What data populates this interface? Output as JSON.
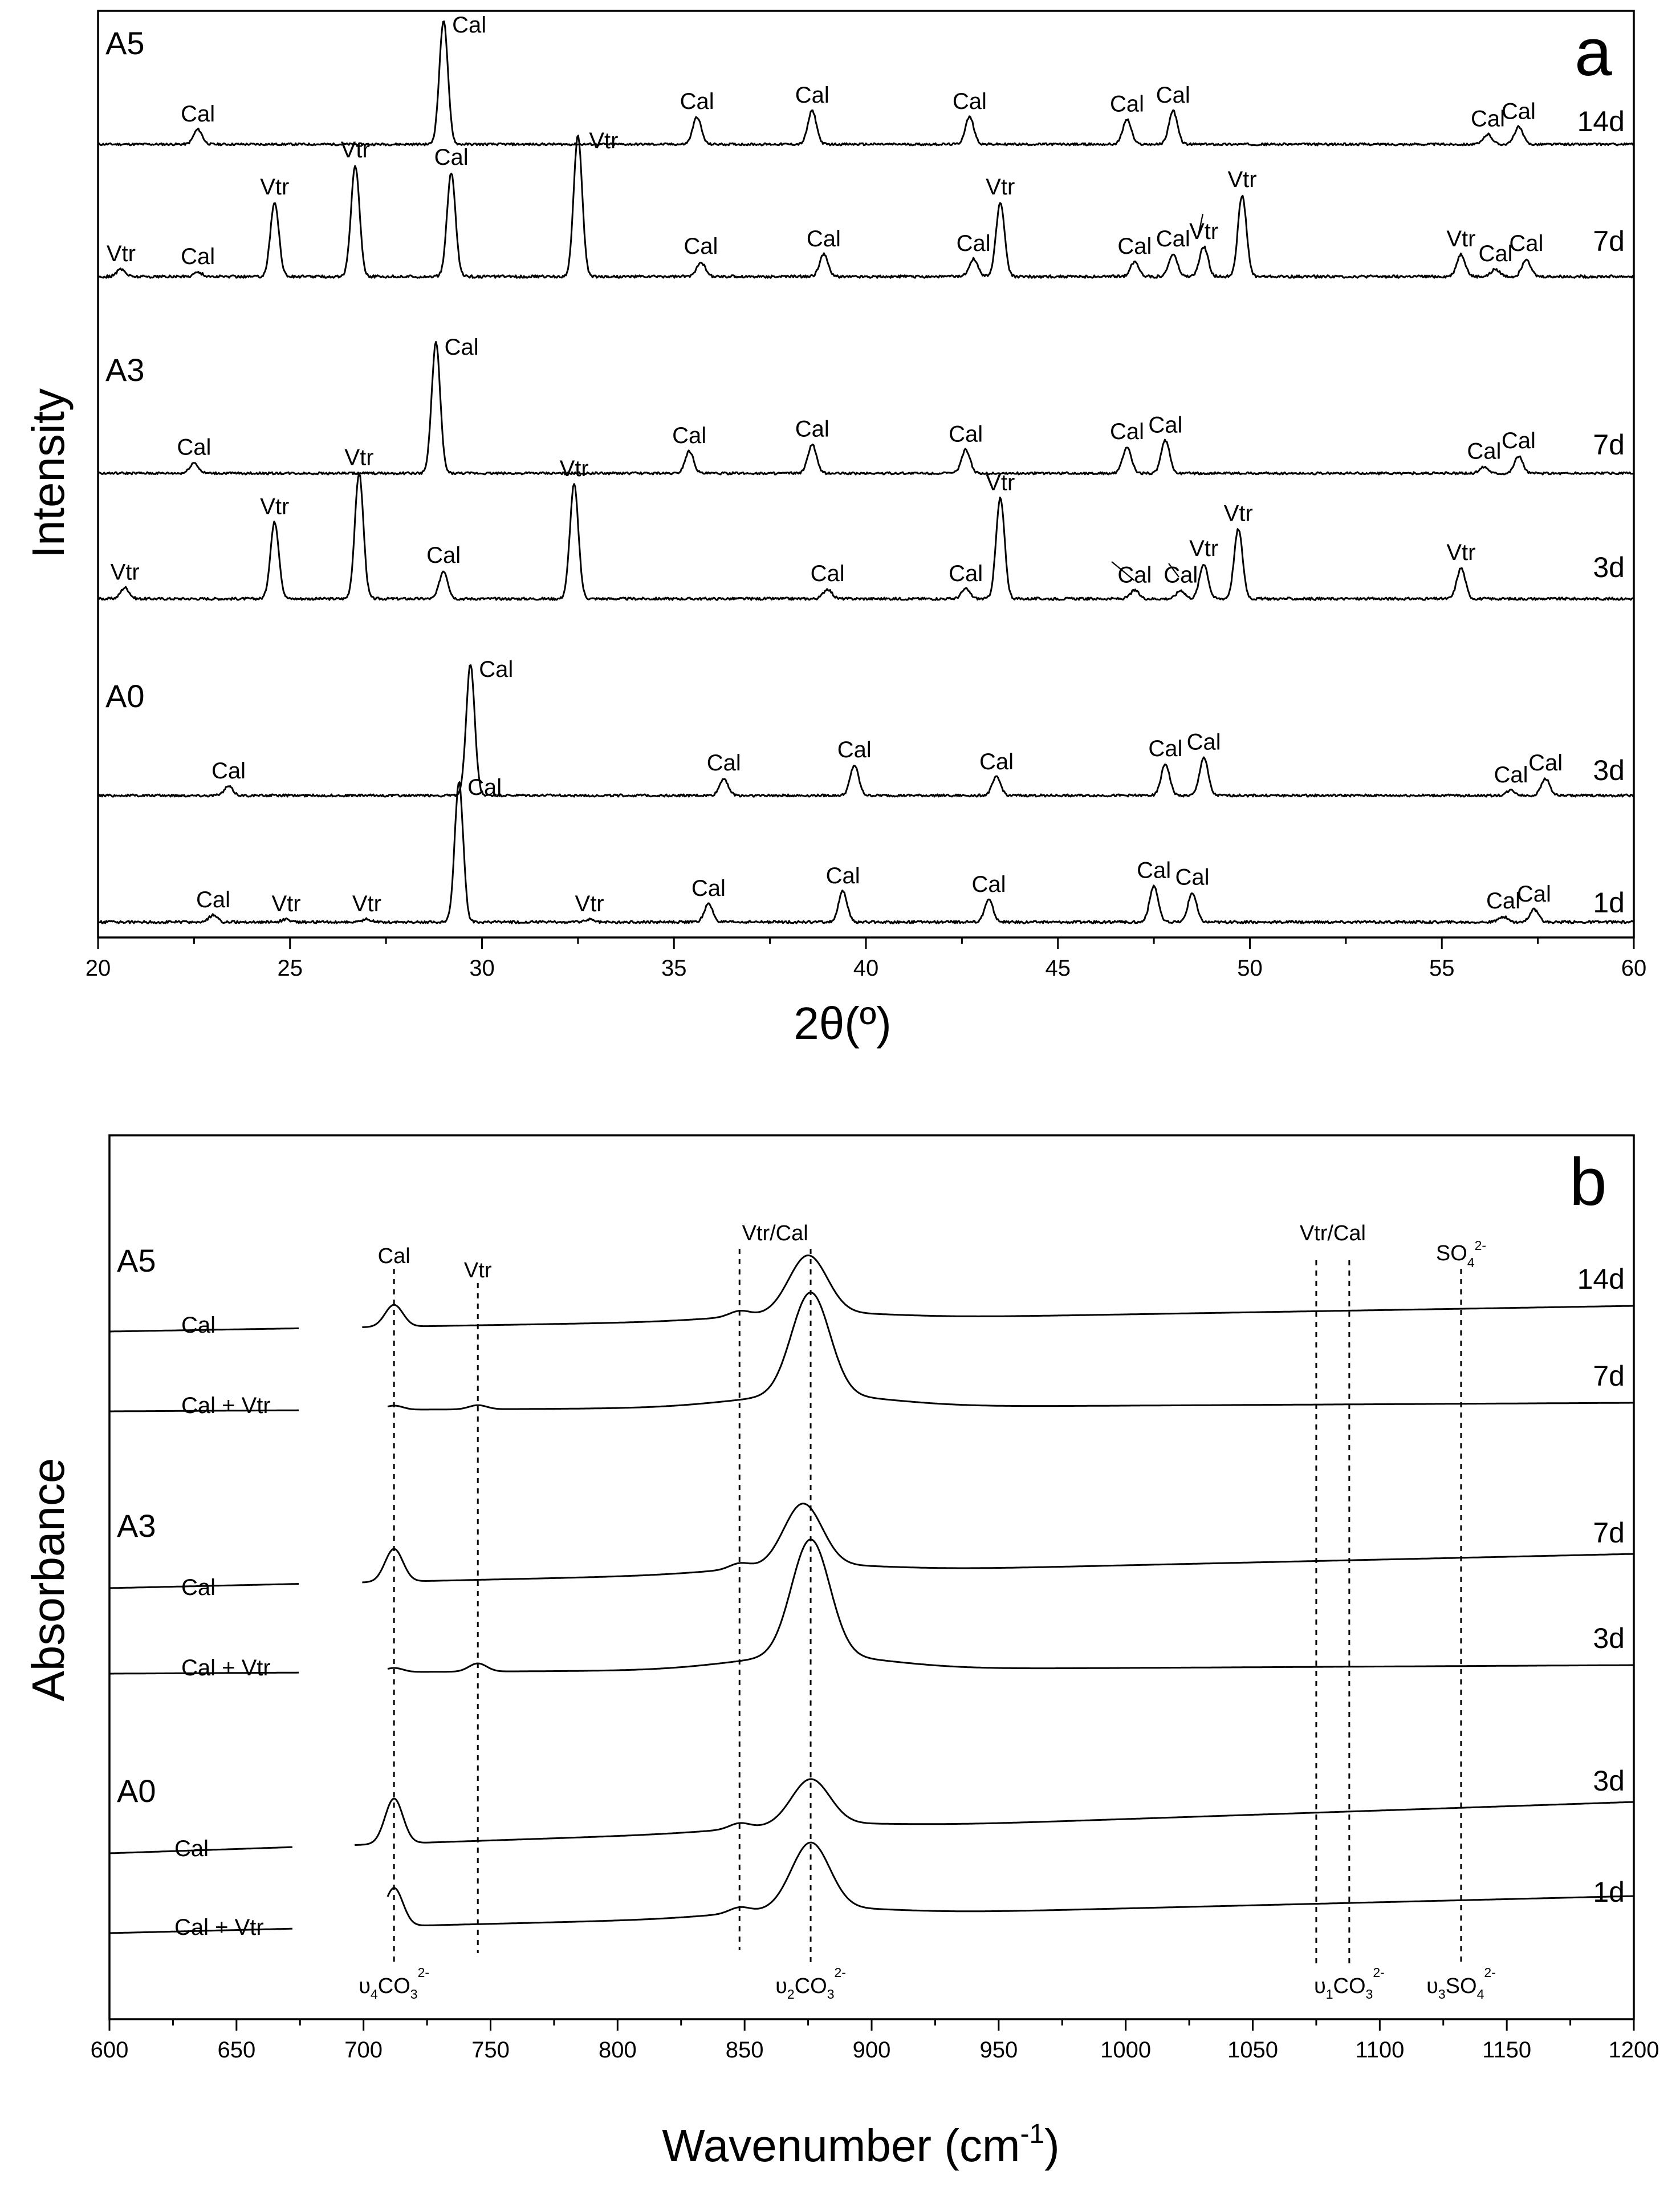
{
  "chart_data": [
    {
      "type": "line",
      "panel_label": "a",
      "xlabel": "2θ(º)",
      "ylabel": "Intensity",
      "xlim": [
        20,
        60
      ],
      "x_ticks": [
        "20",
        "25",
        "30",
        "35",
        "40",
        "45",
        "50",
        "55",
        "60"
      ],
      "samples": [
        "A5",
        "A3",
        "A0"
      ],
      "series": [
        {
          "sample": "A5",
          "time": "14d",
          "peaks": [
            {
              "x": 22.6,
              "h": 0.12,
              "label": "Cal"
            },
            {
              "x": 29.0,
              "h": 1.0,
              "label": "Cal"
            },
            {
              "x": 35.6,
              "h": 0.22,
              "label": "Cal"
            },
            {
              "x": 38.6,
              "h": 0.27,
              "label": "Cal"
            },
            {
              "x": 42.7,
              "h": 0.22,
              "label": "Cal"
            },
            {
              "x": 46.8,
              "h": 0.2,
              "label": "Cal"
            },
            {
              "x": 48.0,
              "h": 0.27,
              "label": "Cal"
            },
            {
              "x": 56.2,
              "h": 0.08,
              "label": "Cal"
            },
            {
              "x": 57.0,
              "h": 0.14,
              "label": "Cal"
            }
          ]
        },
        {
          "sample": "A5",
          "time": "7d",
          "peaks": [
            {
              "x": 20.6,
              "h": 0.05,
              "label": "Vtr"
            },
            {
              "x": 22.6,
              "h": 0.03,
              "label": "Cal"
            },
            {
              "x": 24.6,
              "h": 0.5,
              "label": "Vtr"
            },
            {
              "x": 26.7,
              "h": 0.75,
              "label": "Vtr"
            },
            {
              "x": 29.2,
              "h": 0.7,
              "label": "Cal"
            },
            {
              "x": 32.5,
              "h": 0.95,
              "label": "Vtr"
            },
            {
              "x": 35.7,
              "h": 0.1,
              "label": "Cal"
            },
            {
              "x": 38.9,
              "h": 0.15,
              "label": "Cal"
            },
            {
              "x": 42.8,
              "h": 0.12,
              "label": "Cal"
            },
            {
              "x": 43.5,
              "h": 0.5,
              "label": "Vtr"
            },
            {
              "x": 47.0,
              "h": 0.1,
              "label": "Cal"
            },
            {
              "x": 48.0,
              "h": 0.15,
              "label": "Cal"
            },
            {
              "x": 48.8,
              "h": 0.2,
              "label": "Vtr"
            },
            {
              "x": 49.8,
              "h": 0.55,
              "label": "Vtr"
            },
            {
              "x": 55.5,
              "h": 0.15,
              "label": "Vtr"
            },
            {
              "x": 56.4,
              "h": 0.05,
              "label": "Cal"
            },
            {
              "x": 57.2,
              "h": 0.12,
              "label": "Cal"
            }
          ]
        },
        {
          "sample": "A3",
          "time": "7d",
          "peaks": [
            {
              "x": 22.5,
              "h": 0.08,
              "label": "Cal"
            },
            {
              "x": 28.8,
              "h": 1.0,
              "label": "Cal"
            },
            {
              "x": 35.4,
              "h": 0.17,
              "label": "Cal"
            },
            {
              "x": 38.6,
              "h": 0.22,
              "label": "Cal"
            },
            {
              "x": 42.6,
              "h": 0.18,
              "label": "Cal"
            },
            {
              "x": 46.8,
              "h": 0.2,
              "label": "Cal"
            },
            {
              "x": 47.8,
              "h": 0.25,
              "label": "Cal"
            },
            {
              "x": 56.1,
              "h": 0.05,
              "label": "Cal"
            },
            {
              "x": 57.0,
              "h": 0.13,
              "label": "Cal"
            }
          ]
        },
        {
          "sample": "A3",
          "time": "3d",
          "peaks": [
            {
              "x": 20.7,
              "h": 0.08,
              "label": "Vtr"
            },
            {
              "x": 24.6,
              "h": 0.55,
              "label": "Vtr"
            },
            {
              "x": 26.8,
              "h": 0.9,
              "label": "Vtr"
            },
            {
              "x": 29.0,
              "h": 0.2,
              "label": "Cal"
            },
            {
              "x": 32.4,
              "h": 0.82,
              "label": "Vtr"
            },
            {
              "x": 39.0,
              "h": 0.07,
              "label": "Cal"
            },
            {
              "x": 42.6,
              "h": 0.07,
              "label": "Cal"
            },
            {
              "x": 43.5,
              "h": 0.72,
              "label": "Vtr"
            },
            {
              "x": 47.0,
              "h": 0.06,
              "label": "Cal"
            },
            {
              "x": 48.2,
              "h": 0.06,
              "label": "Cal"
            },
            {
              "x": 48.8,
              "h": 0.25,
              "label": "Vtr"
            },
            {
              "x": 49.7,
              "h": 0.5,
              "label": "Vtr"
            },
            {
              "x": 55.5,
              "h": 0.22,
              "label": "Vtr"
            }
          ]
        },
        {
          "sample": "A0",
          "time": "3d",
          "peaks": [
            {
              "x": 23.4,
              "h": 0.07,
              "label": "Cal"
            },
            {
              "x": 29.7,
              "h": 1.0,
              "label": "Cal"
            },
            {
              "x": 36.3,
              "h": 0.13,
              "label": "Cal"
            },
            {
              "x": 39.7,
              "h": 0.23,
              "label": "Cal"
            },
            {
              "x": 43.4,
              "h": 0.14,
              "label": "Cal"
            },
            {
              "x": 47.8,
              "h": 0.24,
              "label": "Cal"
            },
            {
              "x": 48.8,
              "h": 0.29,
              "label": "Cal"
            },
            {
              "x": 56.8,
              "h": 0.04,
              "label": "Cal"
            },
            {
              "x": 57.7,
              "h": 0.13,
              "label": "Cal"
            }
          ]
        },
        {
          "sample": "A0",
          "time": "1d",
          "peaks": [
            {
              "x": 23.0,
              "h": 0.05,
              "label": "Cal"
            },
            {
              "x": 24.9,
              "h": 0.02,
              "label": "Vtr"
            },
            {
              "x": 27.0,
              "h": 0.02,
              "label": "Vtr"
            },
            {
              "x": 29.4,
              "h": 1.0,
              "label": "Cal"
            },
            {
              "x": 32.8,
              "h": 0.02,
              "label": "Vtr"
            },
            {
              "x": 35.9,
              "h": 0.13,
              "label": "Cal"
            },
            {
              "x": 39.4,
              "h": 0.22,
              "label": "Cal"
            },
            {
              "x": 43.2,
              "h": 0.16,
              "label": "Cal"
            },
            {
              "x": 47.5,
              "h": 0.26,
              "label": "Cal"
            },
            {
              "x": 48.5,
              "h": 0.21,
              "label": "Cal"
            },
            {
              "x": 56.6,
              "h": 0.04,
              "label": "Cal"
            },
            {
              "x": 57.4,
              "h": 0.09,
              "label": "Cal"
            }
          ]
        }
      ]
    },
    {
      "type": "line",
      "panel_label": "b",
      "xlabel": "Wavenumber (cm",
      "xlabel_sup": "-1",
      "xlabel_close": ")",
      "ylabel": "Absorbance",
      "xlim": [
        600,
        1200
      ],
      "x_ticks": [
        "600",
        "650",
        "700",
        "750",
        "800",
        "850",
        "900",
        "950",
        "1000",
        "1050",
        "1100",
        "1150",
        "1200"
      ],
      "samples": [
        "A5",
        "A3",
        "A0"
      ],
      "series": [
        {
          "sample": "A5",
          "time": "14d",
          "phase": "Cal",
          "peaks": [
            [
              712,
              0.16
            ],
            [
              875,
              0.42
            ],
            [
              848,
              0.04
            ]
          ]
        },
        {
          "sample": "A5",
          "time": "7d",
          "phase": "Cal + Vtr",
          "peaks": [
            [
              712,
              0.03
            ],
            [
              745,
              0.03
            ],
            [
              876,
              0.75
            ]
          ]
        },
        {
          "sample": "A3",
          "time": "7d",
          "phase": "Cal",
          "peaks": [
            [
              712,
              0.24
            ],
            [
              873,
              0.45
            ],
            [
              848,
              0.04
            ]
          ]
        },
        {
          "sample": "A3",
          "time": "3d",
          "phase": "Cal + Vtr",
          "peaks": [
            [
              712,
              0.03
            ],
            [
              745,
              0.06
            ],
            [
              876,
              0.85
            ]
          ]
        },
        {
          "sample": "A0",
          "time": "3d",
          "phase": "Cal",
          "peaks": [
            [
              712,
              0.33
            ],
            [
              876,
              0.33
            ],
            [
              848,
              0.04
            ]
          ]
        },
        {
          "sample": "A0",
          "time": "1d",
          "phase": "Cal + Vtr",
          "peaks": [
            [
              712,
              0.28
            ],
            [
              876,
              0.48
            ],
            [
              848,
              0.04
            ]
          ]
        }
      ],
      "reference_lines": [
        {
          "x": 712,
          "label_top": "Cal",
          "label_bottom": "υ",
          "sub1": "4",
          "mid": "CO",
          "sub2": "3",
          "sup": "2-"
        },
        {
          "x": 745,
          "label_top": "Vtr"
        },
        {
          "x": 848,
          "label_top": "Vtr/Cal"
        },
        {
          "x": 876,
          "label_bottom": "υ",
          "sub1": "2",
          "mid": "CO",
          "sub2": "3",
          "sup": "2-"
        },
        {
          "x": 1075,
          "label_top": "Vtr/Cal"
        },
        {
          "x": 1088,
          "label_bottom": "υ",
          "sub1": "1",
          "mid": "CO",
          "sub2": "3",
          "sup": "2-"
        },
        {
          "x": 1132,
          "label_top": "SO",
          "label_top_sub": "4",
          "label_top_sup": "2-",
          "label_bottom": "υ",
          "sub1": "3",
          "mid": "SO",
          "sub2": "4",
          "sup": "2-"
        }
      ]
    }
  ]
}
